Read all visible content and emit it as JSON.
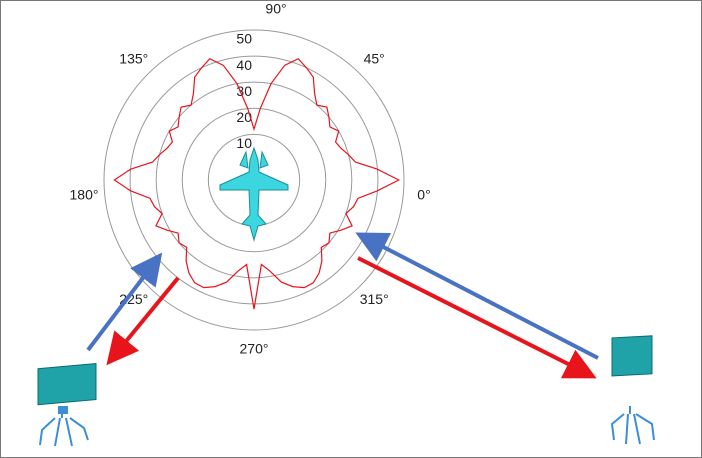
{
  "chart_data": {
    "type": "polar",
    "theta": [
      0,
      5,
      10,
      15,
      20,
      25,
      30,
      35,
      40,
      45,
      50,
      55,
      60,
      65,
      70,
      75,
      80,
      85,
      90,
      95,
      100,
      105,
      110,
      115,
      120,
      125,
      130,
      135,
      140,
      145,
      150,
      155,
      160,
      165,
      170,
      175,
      180,
      185,
      190,
      195,
      200,
      205,
      210,
      215,
      220,
      225,
      230,
      235,
      240,
      245,
      250,
      255,
      260,
      265,
      270,
      275,
      280,
      285,
      290,
      295,
      300,
      305,
      310,
      315,
      320,
      325,
      330,
      335,
      340,
      345,
      350,
      355
    ],
    "r": [
      48,
      40,
      32,
      30,
      28,
      27,
      30,
      28,
      30,
      32,
      30,
      33,
      38,
      40,
      42,
      38,
      30,
      20,
      12,
      20,
      30,
      38,
      42,
      40,
      38,
      33,
      30,
      32,
      30,
      28,
      30,
      27,
      28,
      30,
      32,
      40,
      46,
      40,
      33,
      32,
      30,
      34,
      31,
      28,
      30,
      29,
      33,
      36,
      38,
      38,
      36,
      33,
      28,
      25,
      42,
      25,
      28,
      33,
      36,
      38,
      38,
      36,
      33,
      29,
      30,
      28,
      31,
      34,
      30,
      32,
      33,
      40
    ],
    "color": "#e8141c",
    "rlim": [
      -7.5,
      50
    ],
    "rticks": [
      10,
      20,
      30,
      40,
      50
    ],
    "thetaticks": [
      {
        "value": 0,
        "label": "0°"
      },
      {
        "value": 45,
        "label": "45°"
      },
      {
        "value": 90,
        "label": "90°"
      },
      {
        "value": 135,
        "label": "135°"
      },
      {
        "value": 180,
        "label": "180°"
      },
      {
        "value": 225,
        "label": "225°"
      },
      {
        "value": 270,
        "label": "270°"
      },
      {
        "value": 315,
        "label": "315°"
      }
    ]
  }
}
